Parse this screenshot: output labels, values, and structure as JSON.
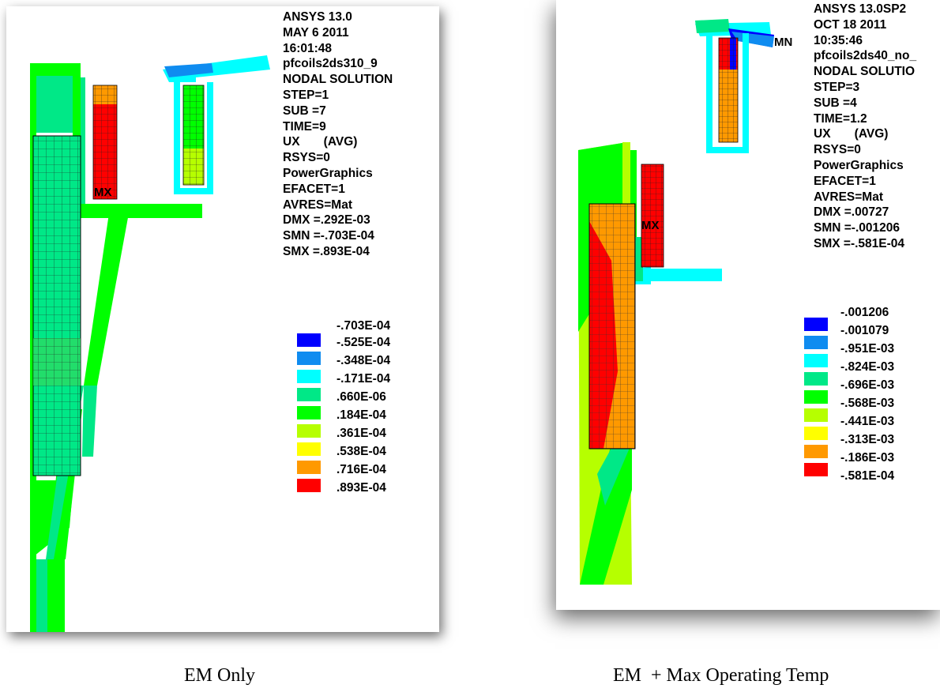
{
  "palette": [
    "#0000ff",
    "#0f8cf0",
    "#00ffff",
    "#00e887",
    "#00ff00",
    "#b6ff00",
    "#ffff00",
    "#ff9900",
    "#ff0000"
  ],
  "left_panel": {
    "info_lines": [
      "ANSYS 13.0",
      "MAY  6 2011",
      "16:01:48",
      "pfcoils2ds310_9",
      "NODAL SOLUTION",
      "STEP=1",
      "SUB =7",
      "TIME=9",
      "UX       (AVG)",
      "RSYS=0",
      "PowerGraphics",
      "EFACET=1",
      "AVRES=Mat",
      "DMX =.292E-03",
      "SMN =-.703E-04",
      "SMX =.893E-04"
    ],
    "legend_values": [
      "-.703E-04",
      "-.525E-04",
      "-.348E-04",
      "-.171E-04",
      ".660E-06",
      ".184E-04",
      ".361E-04",
      ".538E-04",
      ".716E-04",
      ".893E-04"
    ],
    "marker_mx": "MX",
    "caption": "EM Only"
  },
  "right_panel": {
    "info_lines": [
      "ANSYS 13.0SP2",
      "OCT 18 2011",
      "10:35:46",
      "pfcoils2ds40_no_",
      "NODAL SOLUTIO",
      "STEP=3",
      "SUB =4",
      "TIME=1.2",
      "UX       (AVG)",
      "RSYS=0",
      "PowerGraphics",
      "EFACET=1",
      "AVRES=Mat",
      "DMX =.00727",
      "SMN =-.001206",
      "SMX =-.581E-04"
    ],
    "legend_values": [
      "-.001206",
      "-.001079",
      "-.951E-03",
      "-.824E-03",
      "-.696E-03",
      "-.568E-03",
      "-.441E-03",
      "-.313E-03",
      "-.186E-03",
      "-.581E-04"
    ],
    "marker_mx": "MX",
    "marker_mn": "MN",
    "caption": "EM  + Max Operating Temp"
  }
}
